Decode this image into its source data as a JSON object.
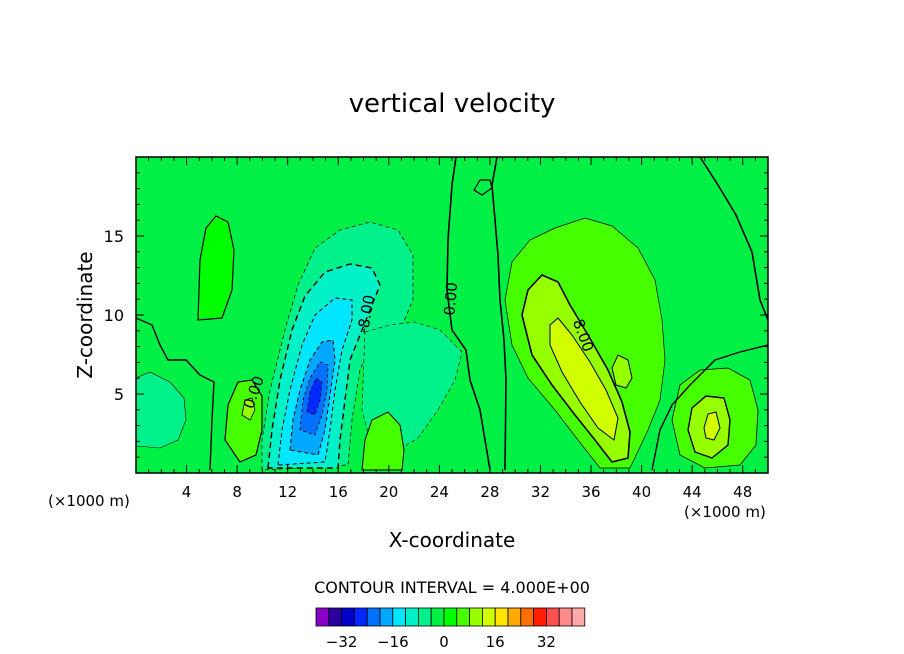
{
  "chart_data": {
    "type": "heatmap",
    "title": "vertical velocity",
    "xlabel": "X-coordinate",
    "ylabel": "Z-coordinate",
    "x_unit_left": "(×1000 m)",
    "x_unit_right": "(×1000 m)",
    "xlim": [
      0,
      50
    ],
    "ylim": [
      0,
      20
    ],
    "xticks": [
      4,
      8,
      12,
      16,
      20,
      24,
      28,
      32,
      36,
      40,
      44,
      48
    ],
    "yticks": [
      5,
      10,
      15
    ],
    "contour_interval_text": "CONTOUR INTERVAL = 4.000E+00",
    "contour_labels": [
      {
        "text": "-8.00",
        "x": 18.6,
        "z": 10.0,
        "angle": -80
      },
      {
        "text": "0.00",
        "x": 25.3,
        "z": 11.0,
        "angle": -85
      },
      {
        "text": "8.00",
        "x": 35.0,
        "z": 8.6,
        "angle": 70
      },
      {
        "text": "0.00",
        "x": 9.7,
        "z": 5.0,
        "angle": -70
      }
    ],
    "colorbar": {
      "levels": [
        -36,
        -32,
        -28,
        -24,
        -20,
        -16,
        -12,
        -8,
        -4,
        0,
        4,
        8,
        12,
        16,
        20,
        24,
        28,
        32,
        36
      ],
      "colors": [
        "#8a00c8",
        "#2a00a0",
        "#0000c8",
        "#0028ff",
        "#0070ff",
        "#00a8ff",
        "#00e6ff",
        "#00f0c8",
        "#00f08a",
        "#00f046",
        "#00ff00",
        "#46ff00",
        "#96ff00",
        "#d2ff00",
        "#ffe600",
        "#ffaa00",
        "#ff6e00",
        "#ff1e00",
        "#ff5050",
        "#ff8a8a",
        "#ffaaaa"
      ],
      "tick_labels": [
        {
          "value": -32,
          "text": "−32"
        },
        {
          "value": -16,
          "text": "−16"
        },
        {
          "value": 0,
          "text": "0"
        },
        {
          "value": 16,
          "text": "16"
        },
        {
          "value": 32,
          "text": "32"
        }
      ]
    },
    "features": [
      {
        "kind": "downdraft",
        "x": 14.5,
        "z": 5.0,
        "min_value": -28
      },
      {
        "kind": "updraft",
        "x": 36.0,
        "z": 5.0,
        "max_value": 14
      },
      {
        "kind": "updraft",
        "x": 45.5,
        "z": 3.0,
        "max_value": 8
      }
    ]
  }
}
